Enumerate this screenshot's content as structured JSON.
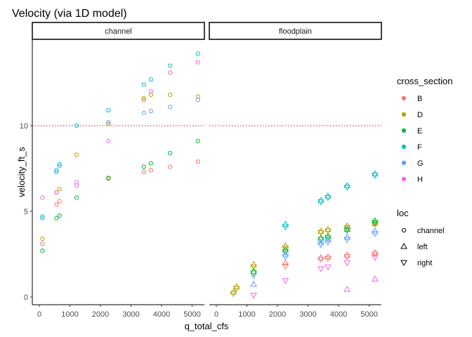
{
  "chart_data": {
    "type": "scatter",
    "title": "Velocity (via 1D model)",
    "xlabel": "q_total_cfs",
    "ylabel": "velocity_ft_s",
    "x_ticks": [
      0,
      1000,
      2000,
      3000,
      4000,
      5000
    ],
    "y_ticks": [
      0,
      5,
      10
    ],
    "xlim": [
      -230,
      5400
    ],
    "ylim": [
      -0.45,
      15.0
    ],
    "grid": false,
    "reference_line": {
      "y": 10,
      "style": "dotted",
      "color": "#b2182b"
    },
    "facets": [
      "channel",
      "floodplain"
    ],
    "legend": {
      "placement": "right",
      "color_title": "cross_section",
      "shape_title": "loc",
      "colors": [
        {
          "label": "B",
          "color": "#F8766D"
        },
        {
          "label": "D",
          "color": "#B79F00"
        },
        {
          "label": "E",
          "color": "#00BA38"
        },
        {
          "label": "F",
          "color": "#00BFC4"
        },
        {
          "label": "G",
          "color": "#619CFF"
        },
        {
          "label": "H",
          "color": "#F564E3"
        }
      ],
      "shapes": [
        {
          "label": "channel",
          "shape": "circle"
        },
        {
          "label": "left",
          "shape": "triangle-up"
        },
        {
          "label": "right",
          "shape": "triangle-down"
        }
      ]
    },
    "points": [
      {
        "facet": "channel",
        "cs": "B",
        "loc": "channel",
        "x": 100,
        "y": 3.1
      },
      {
        "facet": "channel",
        "cs": "B",
        "loc": "channel",
        "x": 560,
        "y": 5.4
      },
      {
        "facet": "channel",
        "cs": "B",
        "loc": "channel",
        "x": 660,
        "y": 5.6
      },
      {
        "facet": "channel",
        "cs": "B",
        "loc": "channel",
        "x": 2260,
        "y": 6.9
      },
      {
        "facet": "channel",
        "cs": "B",
        "loc": "channel",
        "x": 3420,
        "y": 7.3
      },
      {
        "facet": "channel",
        "cs": "B",
        "loc": "channel",
        "x": 3650,
        "y": 7.4
      },
      {
        "facet": "channel",
        "cs": "B",
        "loc": "channel",
        "x": 4280,
        "y": 7.6
      },
      {
        "facet": "channel",
        "cs": "B",
        "loc": "channel",
        "x": 5190,
        "y": 7.9
      },
      {
        "facet": "channel",
        "cs": "B",
        "loc": "channel",
        "x": 3420,
        "y": 11.5
      },
      {
        "facet": "channel",
        "cs": "D",
        "loc": "channel",
        "x": 100,
        "y": 3.4
      },
      {
        "facet": "channel",
        "cs": "D",
        "loc": "channel",
        "x": 560,
        "y": 6.1
      },
      {
        "facet": "channel",
        "cs": "D",
        "loc": "channel",
        "x": 660,
        "y": 6.3
      },
      {
        "facet": "channel",
        "cs": "D",
        "loc": "channel",
        "x": 1220,
        "y": 8.3
      },
      {
        "facet": "channel",
        "cs": "D",
        "loc": "channel",
        "x": 2260,
        "y": 10.1
      },
      {
        "facet": "channel",
        "cs": "D",
        "loc": "channel",
        "x": 3420,
        "y": 11.6
      },
      {
        "facet": "channel",
        "cs": "D",
        "loc": "channel",
        "x": 3650,
        "y": 11.8
      },
      {
        "facet": "channel",
        "cs": "D",
        "loc": "channel",
        "x": 4280,
        "y": 11.8
      },
      {
        "facet": "channel",
        "cs": "D",
        "loc": "channel",
        "x": 5190,
        "y": 11.7
      },
      {
        "facet": "channel",
        "cs": "D",
        "loc": "channel",
        "x": 2260,
        "y": 6.95
      },
      {
        "facet": "channel",
        "cs": "E",
        "loc": "channel",
        "x": 100,
        "y": 2.7
      },
      {
        "facet": "channel",
        "cs": "E",
        "loc": "channel",
        "x": 560,
        "y": 4.6
      },
      {
        "facet": "channel",
        "cs": "E",
        "loc": "channel",
        "x": 660,
        "y": 4.75
      },
      {
        "facet": "channel",
        "cs": "E",
        "loc": "channel",
        "x": 1220,
        "y": 5.8
      },
      {
        "facet": "channel",
        "cs": "E",
        "loc": "channel",
        "x": 2260,
        "y": 6.95
      },
      {
        "facet": "channel",
        "cs": "E",
        "loc": "channel",
        "x": 3420,
        "y": 7.6
      },
      {
        "facet": "channel",
        "cs": "E",
        "loc": "channel",
        "x": 3650,
        "y": 7.8
      },
      {
        "facet": "channel",
        "cs": "E",
        "loc": "channel",
        "x": 4280,
        "y": 8.4
      },
      {
        "facet": "channel",
        "cs": "E",
        "loc": "channel",
        "x": 5190,
        "y": 9.1
      },
      {
        "facet": "channel",
        "cs": "F",
        "loc": "channel",
        "x": 100,
        "y": 4.7
      },
      {
        "facet": "channel",
        "cs": "F",
        "loc": "channel",
        "x": 560,
        "y": 7.4
      },
      {
        "facet": "channel",
        "cs": "F",
        "loc": "channel",
        "x": 660,
        "y": 7.75
      },
      {
        "facet": "channel",
        "cs": "F",
        "loc": "channel",
        "x": 1220,
        "y": 10.0
      },
      {
        "facet": "channel",
        "cs": "F",
        "loc": "channel",
        "x": 2260,
        "y": 10.9
      },
      {
        "facet": "channel",
        "cs": "F",
        "loc": "channel",
        "x": 3420,
        "y": 12.4
      },
      {
        "facet": "channel",
        "cs": "F",
        "loc": "channel",
        "x": 3650,
        "y": 12.7
      },
      {
        "facet": "channel",
        "cs": "F",
        "loc": "channel",
        "x": 4280,
        "y": 13.5
      },
      {
        "facet": "channel",
        "cs": "F",
        "loc": "channel",
        "x": 5190,
        "y": 14.2
      },
      {
        "facet": "channel",
        "cs": "G",
        "loc": "channel",
        "x": 100,
        "y": 4.6
      },
      {
        "facet": "channel",
        "cs": "G",
        "loc": "channel",
        "x": 560,
        "y": 7.3
      },
      {
        "facet": "channel",
        "cs": "G",
        "loc": "channel",
        "x": 660,
        "y": 7.65
      },
      {
        "facet": "channel",
        "cs": "G",
        "loc": "channel",
        "x": 2260,
        "y": 10.2
      },
      {
        "facet": "channel",
        "cs": "G",
        "loc": "channel",
        "x": 3420,
        "y": 10.75
      },
      {
        "facet": "channel",
        "cs": "G",
        "loc": "channel",
        "x": 3650,
        "y": 10.85
      },
      {
        "facet": "channel",
        "cs": "G",
        "loc": "channel",
        "x": 4280,
        "y": 11.1
      },
      {
        "facet": "channel",
        "cs": "G",
        "loc": "channel",
        "x": 5190,
        "y": 11.5
      },
      {
        "facet": "channel",
        "cs": "H",
        "loc": "channel",
        "x": 100,
        "y": 5.8
      },
      {
        "facet": "channel",
        "cs": "H",
        "loc": "channel",
        "x": 560,
        "y": 6.1
      },
      {
        "facet": "channel",
        "cs": "H",
        "loc": "channel",
        "x": 1220,
        "y": 6.7
      },
      {
        "facet": "channel",
        "cs": "H",
        "loc": "channel",
        "x": 1220,
        "y": 6.5
      },
      {
        "facet": "channel",
        "cs": "H",
        "loc": "channel",
        "x": 2260,
        "y": 9.1
      },
      {
        "facet": "channel",
        "cs": "H",
        "loc": "channel",
        "x": 3650,
        "y": 12.0
      },
      {
        "facet": "channel",
        "cs": "H",
        "loc": "channel",
        "x": 4280,
        "y": 13.1
      },
      {
        "facet": "channel",
        "cs": "H",
        "loc": "channel",
        "x": 5190,
        "y": 13.7
      },
      {
        "facet": "floodplain",
        "cs": "B",
        "loc": "left",
        "x": 2260,
        "y": 2.0
      },
      {
        "facet": "floodplain",
        "cs": "B",
        "loc": "right",
        "x": 2260,
        "y": 1.8
      },
      {
        "facet": "floodplain",
        "cs": "B",
        "loc": "left",
        "x": 3420,
        "y": 2.3
      },
      {
        "facet": "floodplain",
        "cs": "B",
        "loc": "right",
        "x": 3420,
        "y": 2.2
      },
      {
        "facet": "floodplain",
        "cs": "B",
        "loc": "left",
        "x": 3650,
        "y": 2.35
      },
      {
        "facet": "floodplain",
        "cs": "B",
        "loc": "right",
        "x": 3650,
        "y": 2.25
      },
      {
        "facet": "floodplain",
        "cs": "B",
        "loc": "left",
        "x": 4280,
        "y": 2.45
      },
      {
        "facet": "floodplain",
        "cs": "B",
        "loc": "right",
        "x": 4280,
        "y": 2.35
      },
      {
        "facet": "floodplain",
        "cs": "B",
        "loc": "left",
        "x": 5190,
        "y": 2.6
      },
      {
        "facet": "floodplain",
        "cs": "B",
        "loc": "right",
        "x": 5190,
        "y": 2.5
      },
      {
        "facet": "floodplain",
        "cs": "D",
        "loc": "left",
        "x": 560,
        "y": 0.3
      },
      {
        "facet": "floodplain",
        "cs": "D",
        "loc": "right",
        "x": 560,
        "y": 0.2
      },
      {
        "facet": "floodplain",
        "cs": "D",
        "loc": "left",
        "x": 660,
        "y": 0.6
      },
      {
        "facet": "floodplain",
        "cs": "D",
        "loc": "right",
        "x": 660,
        "y": 0.5
      },
      {
        "facet": "floodplain",
        "cs": "D",
        "loc": "left",
        "x": 1220,
        "y": 1.9
      },
      {
        "facet": "floodplain",
        "cs": "D",
        "loc": "right",
        "x": 1220,
        "y": 1.75
      },
      {
        "facet": "floodplain",
        "cs": "D",
        "loc": "left",
        "x": 2260,
        "y": 3.0
      },
      {
        "facet": "floodplain",
        "cs": "D",
        "loc": "right",
        "x": 2260,
        "y": 2.85
      },
      {
        "facet": "floodplain",
        "cs": "D",
        "loc": "left",
        "x": 3420,
        "y": 3.85
      },
      {
        "facet": "floodplain",
        "cs": "D",
        "loc": "right",
        "x": 3420,
        "y": 3.75
      },
      {
        "facet": "floodplain",
        "cs": "D",
        "loc": "left",
        "x": 3650,
        "y": 3.95
      },
      {
        "facet": "floodplain",
        "cs": "D",
        "loc": "right",
        "x": 3650,
        "y": 3.85
      },
      {
        "facet": "floodplain",
        "cs": "D",
        "loc": "left",
        "x": 4280,
        "y": 4.15
      },
      {
        "facet": "floodplain",
        "cs": "D",
        "loc": "right",
        "x": 4280,
        "y": 4.05
      },
      {
        "facet": "floodplain",
        "cs": "D",
        "loc": "left",
        "x": 5190,
        "y": 4.3
      },
      {
        "facet": "floodplain",
        "cs": "D",
        "loc": "right",
        "x": 5190,
        "y": 4.25
      },
      {
        "facet": "floodplain",
        "cs": "E",
        "loc": "left",
        "x": 1220,
        "y": 1.5
      },
      {
        "facet": "floodplain",
        "cs": "E",
        "loc": "right",
        "x": 1220,
        "y": 1.4
      },
      {
        "facet": "floodplain",
        "cs": "E",
        "loc": "left",
        "x": 2260,
        "y": 2.75
      },
      {
        "facet": "floodplain",
        "cs": "E",
        "loc": "right",
        "x": 2260,
        "y": 2.65
      },
      {
        "facet": "floodplain",
        "cs": "E",
        "loc": "left",
        "x": 3420,
        "y": 3.45
      },
      {
        "facet": "floodplain",
        "cs": "E",
        "loc": "right",
        "x": 3420,
        "y": 3.35
      },
      {
        "facet": "floodplain",
        "cs": "E",
        "loc": "left",
        "x": 3650,
        "y": 3.55
      },
      {
        "facet": "floodplain",
        "cs": "E",
        "loc": "right",
        "x": 3650,
        "y": 3.45
      },
      {
        "facet": "floodplain",
        "cs": "E",
        "loc": "left",
        "x": 4280,
        "y": 3.95
      },
      {
        "facet": "floodplain",
        "cs": "E",
        "loc": "right",
        "x": 4280,
        "y": 3.9
      },
      {
        "facet": "floodplain",
        "cs": "E",
        "loc": "left",
        "x": 5190,
        "y": 4.45
      },
      {
        "facet": "floodplain",
        "cs": "E",
        "loc": "right",
        "x": 5190,
        "y": 4.35
      },
      {
        "facet": "floodplain",
        "cs": "F",
        "loc": "left",
        "x": 2260,
        "y": 4.25
      },
      {
        "facet": "floodplain",
        "cs": "F",
        "loc": "right",
        "x": 2260,
        "y": 4.1
      },
      {
        "facet": "floodplain",
        "cs": "F",
        "loc": "left",
        "x": 3420,
        "y": 5.65
      },
      {
        "facet": "floodplain",
        "cs": "F",
        "loc": "right",
        "x": 3420,
        "y": 5.55
      },
      {
        "facet": "floodplain",
        "cs": "F",
        "loc": "left",
        "x": 3650,
        "y": 5.9
      },
      {
        "facet": "floodplain",
        "cs": "F",
        "loc": "right",
        "x": 3650,
        "y": 5.8
      },
      {
        "facet": "floodplain",
        "cs": "F",
        "loc": "left",
        "x": 4280,
        "y": 6.5
      },
      {
        "facet": "floodplain",
        "cs": "F",
        "loc": "right",
        "x": 4280,
        "y": 6.4
      },
      {
        "facet": "floodplain",
        "cs": "F",
        "loc": "left",
        "x": 5190,
        "y": 7.2
      },
      {
        "facet": "floodplain",
        "cs": "F",
        "loc": "right",
        "x": 5190,
        "y": 7.1
      },
      {
        "facet": "floodplain",
        "cs": "G",
        "loc": "left",
        "x": 1220,
        "y": 0.75
      },
      {
        "facet": "floodplain",
        "cs": "G",
        "loc": "right",
        "x": 1220,
        "y": 1.25
      },
      {
        "facet": "floodplain",
        "cs": "G",
        "loc": "left",
        "x": 2260,
        "y": 2.5
      },
      {
        "facet": "floodplain",
        "cs": "G",
        "loc": "right",
        "x": 2260,
        "y": 2.35
      },
      {
        "facet": "floodplain",
        "cs": "G",
        "loc": "left",
        "x": 3420,
        "y": 3.2
      },
      {
        "facet": "floodplain",
        "cs": "G",
        "loc": "right",
        "x": 3420,
        "y": 3.05
      },
      {
        "facet": "floodplain",
        "cs": "G",
        "loc": "left",
        "x": 3650,
        "y": 3.35
      },
      {
        "facet": "floodplain",
        "cs": "G",
        "loc": "right",
        "x": 3650,
        "y": 3.2
      },
      {
        "facet": "floodplain",
        "cs": "G",
        "loc": "left",
        "x": 4280,
        "y": 3.5
      },
      {
        "facet": "floodplain",
        "cs": "G",
        "loc": "right",
        "x": 4280,
        "y": 3.35
      },
      {
        "facet": "floodplain",
        "cs": "G",
        "loc": "left",
        "x": 5190,
        "y": 3.85
      },
      {
        "facet": "floodplain",
        "cs": "G",
        "loc": "right",
        "x": 5190,
        "y": 3.7
      },
      {
        "facet": "floodplain",
        "cs": "H",
        "loc": "right",
        "x": 1220,
        "y": 0.1
      },
      {
        "facet": "floodplain",
        "cs": "H",
        "loc": "right",
        "x": 2260,
        "y": 0.95
      },
      {
        "facet": "floodplain",
        "cs": "H",
        "loc": "right",
        "x": 3420,
        "y": 1.65
      },
      {
        "facet": "floodplain",
        "cs": "H",
        "loc": "right",
        "x": 3650,
        "y": 1.75
      },
      {
        "facet": "floodplain",
        "cs": "H",
        "loc": "right",
        "x": 4280,
        "y": 2.0
      },
      {
        "facet": "floodplain",
        "cs": "H",
        "loc": "right",
        "x": 5190,
        "y": 2.3
      },
      {
        "facet": "floodplain",
        "cs": "H",
        "loc": "left",
        "x": 4280,
        "y": 0.45
      },
      {
        "facet": "floodplain",
        "cs": "H",
        "loc": "left",
        "x": 5190,
        "y": 1.05
      }
    ]
  }
}
